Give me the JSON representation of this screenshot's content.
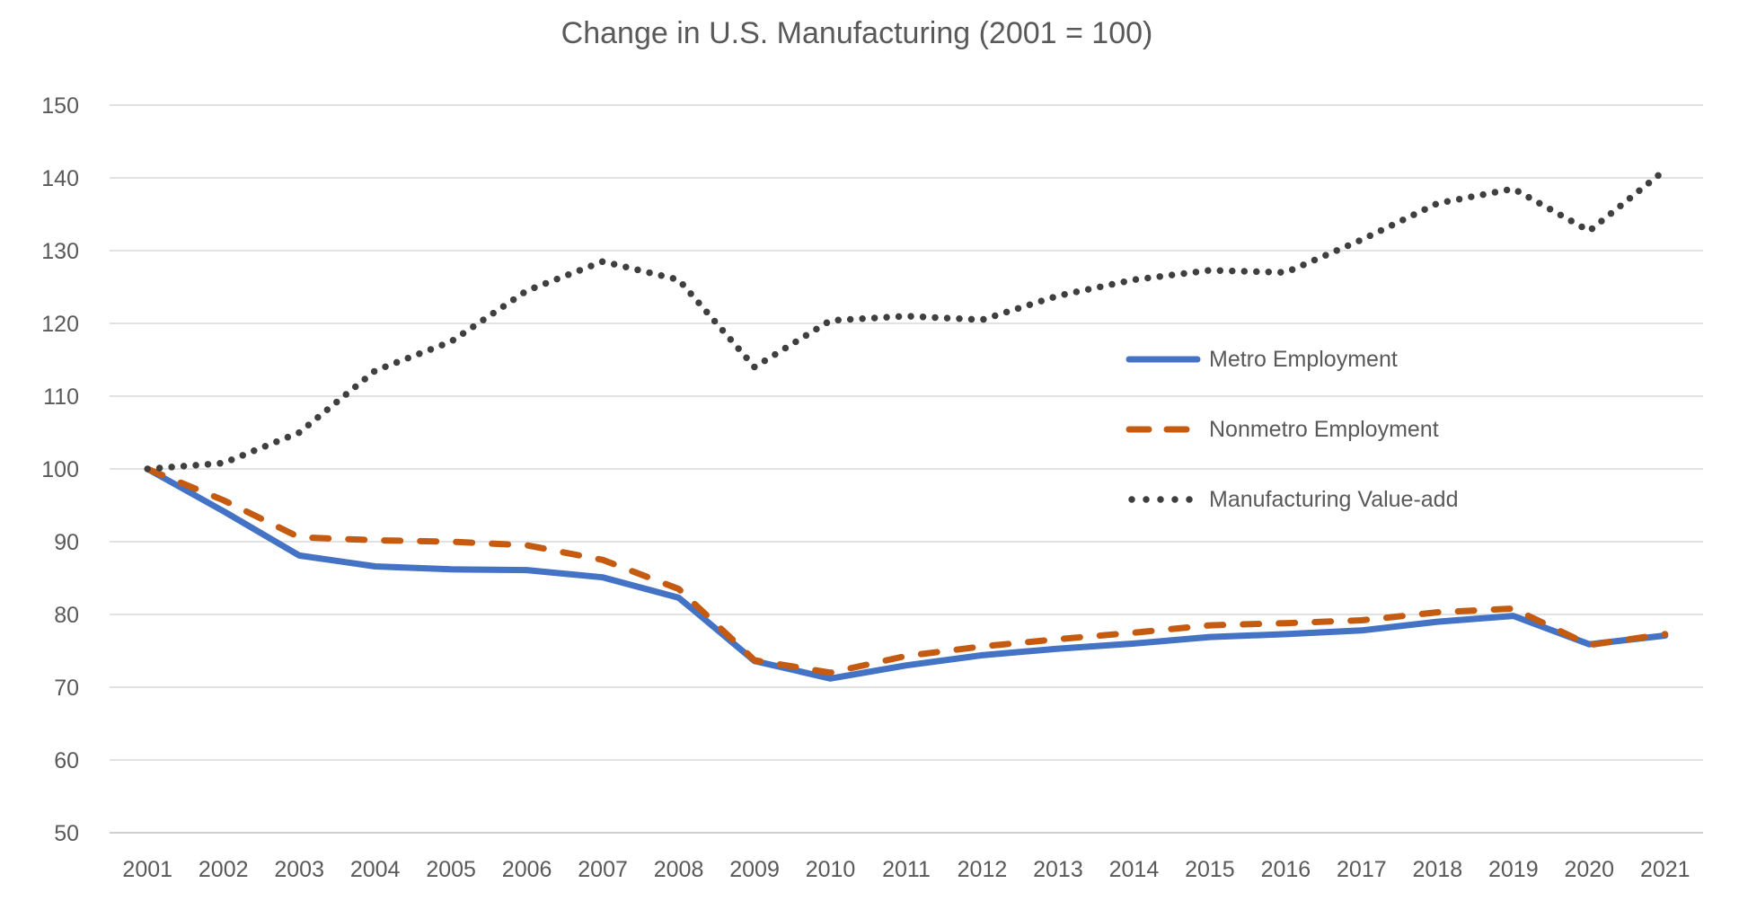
{
  "page": {
    "background": "#FFFFFF",
    "text_color": "#595959",
    "gridline_color": "#D9D9D9",
    "axis_line_color": "#BFBFBF"
  },
  "chart_data": {
    "type": "line",
    "title": "Change in U.S. Manufacturing (2001 = 100)",
    "categories": [
      "2001",
      "2002",
      "2003",
      "2004",
      "2005",
      "2006",
      "2007",
      "2008",
      "2009",
      "2010",
      "2011",
      "2012",
      "2013",
      "2014",
      "2015",
      "2016",
      "2017",
      "2018",
      "2019",
      "2020",
      "2021"
    ],
    "series": [
      {
        "name": "Metro Employment",
        "style": "solid",
        "color": "#4472C4",
        "values": [
          100,
          94.2,
          88.1,
          86.6,
          86.2,
          86.1,
          85.1,
          82.3,
          73.6,
          71.2,
          73.0,
          74.4,
          75.3,
          76.0,
          76.9,
          77.3,
          77.8,
          79.0,
          79.8,
          75.9,
          77.1
        ]
      },
      {
        "name": "Nonmetro Employment",
        "style": "dashed",
        "color": "#C55A11",
        "values": [
          100,
          95.7,
          90.6,
          90.2,
          90.0,
          89.5,
          87.5,
          83.5,
          73.7,
          72.0,
          74.3,
          75.6,
          76.6,
          77.5,
          78.5,
          78.8,
          79.2,
          80.3,
          80.8,
          75.8,
          77.3
        ]
      },
      {
        "name": "Manufacturing Value-add",
        "style": "dotted",
        "color": "#3F3F3F",
        "values": [
          100,
          100.8,
          105.0,
          113.5,
          117.5,
          124.5,
          128.5,
          126.0,
          114.0,
          120.4,
          121.0,
          120.5,
          123.8,
          126.0,
          127.3,
          127.0,
          131.5,
          136.5,
          138.5,
          132.7,
          141.1
        ]
      }
    ],
    "ylim": [
      50,
      150
    ],
    "y_ticks": [
      50,
      60,
      70,
      80,
      90,
      100,
      110,
      120,
      130,
      140,
      150
    ],
    "grid": "horizontal",
    "legend_position": "middle-right"
  }
}
